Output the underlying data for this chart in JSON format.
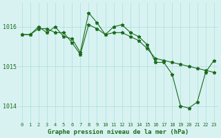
{
  "hours": [
    0,
    1,
    2,
    3,
    4,
    5,
    6,
    7,
    8,
    9,
    10,
    11,
    12,
    13,
    14,
    15,
    16,
    17,
    18,
    19,
    20,
    21,
    22,
    23
  ],
  "series1": [
    1015.8,
    1015.8,
    1015.95,
    1015.95,
    1015.85,
    1015.85,
    1015.6,
    1015.3,
    1016.05,
    1015.95,
    1015.8,
    1016.0,
    1016.05,
    1015.85,
    1015.75,
    1015.55,
    1015.1,
    1015.1,
    1014.8,
    1014.0,
    1013.95,
    1014.1,
    1014.85,
    1015.15
  ],
  "series2": [
    1015.8,
    1015.8,
    1016.0,
    1015.85,
    1016.0,
    1015.75,
    1015.7,
    1015.35,
    1016.35,
    1016.1,
    1015.8,
    1015.85,
    1015.85,
    1015.75,
    1015.65,
    1015.45,
    1015.2,
    1015.15,
    1015.1,
    1015.05,
    1015.0,
    1014.95,
    1014.9,
    1014.85
  ],
  "line_color": "#1a6b1a",
  "bg_color": "#d8f2f2",
  "grid_color": "#aadddd",
  "tick_label_color": "#1a6b1a",
  "xlabel": "Graphe pression niveau de la mer (hPa)",
  "yticks": [
    1014,
    1015,
    1016
  ],
  "ylim": [
    1013.6,
    1016.6
  ],
  "xlim": [
    -0.5,
    23.5
  ]
}
